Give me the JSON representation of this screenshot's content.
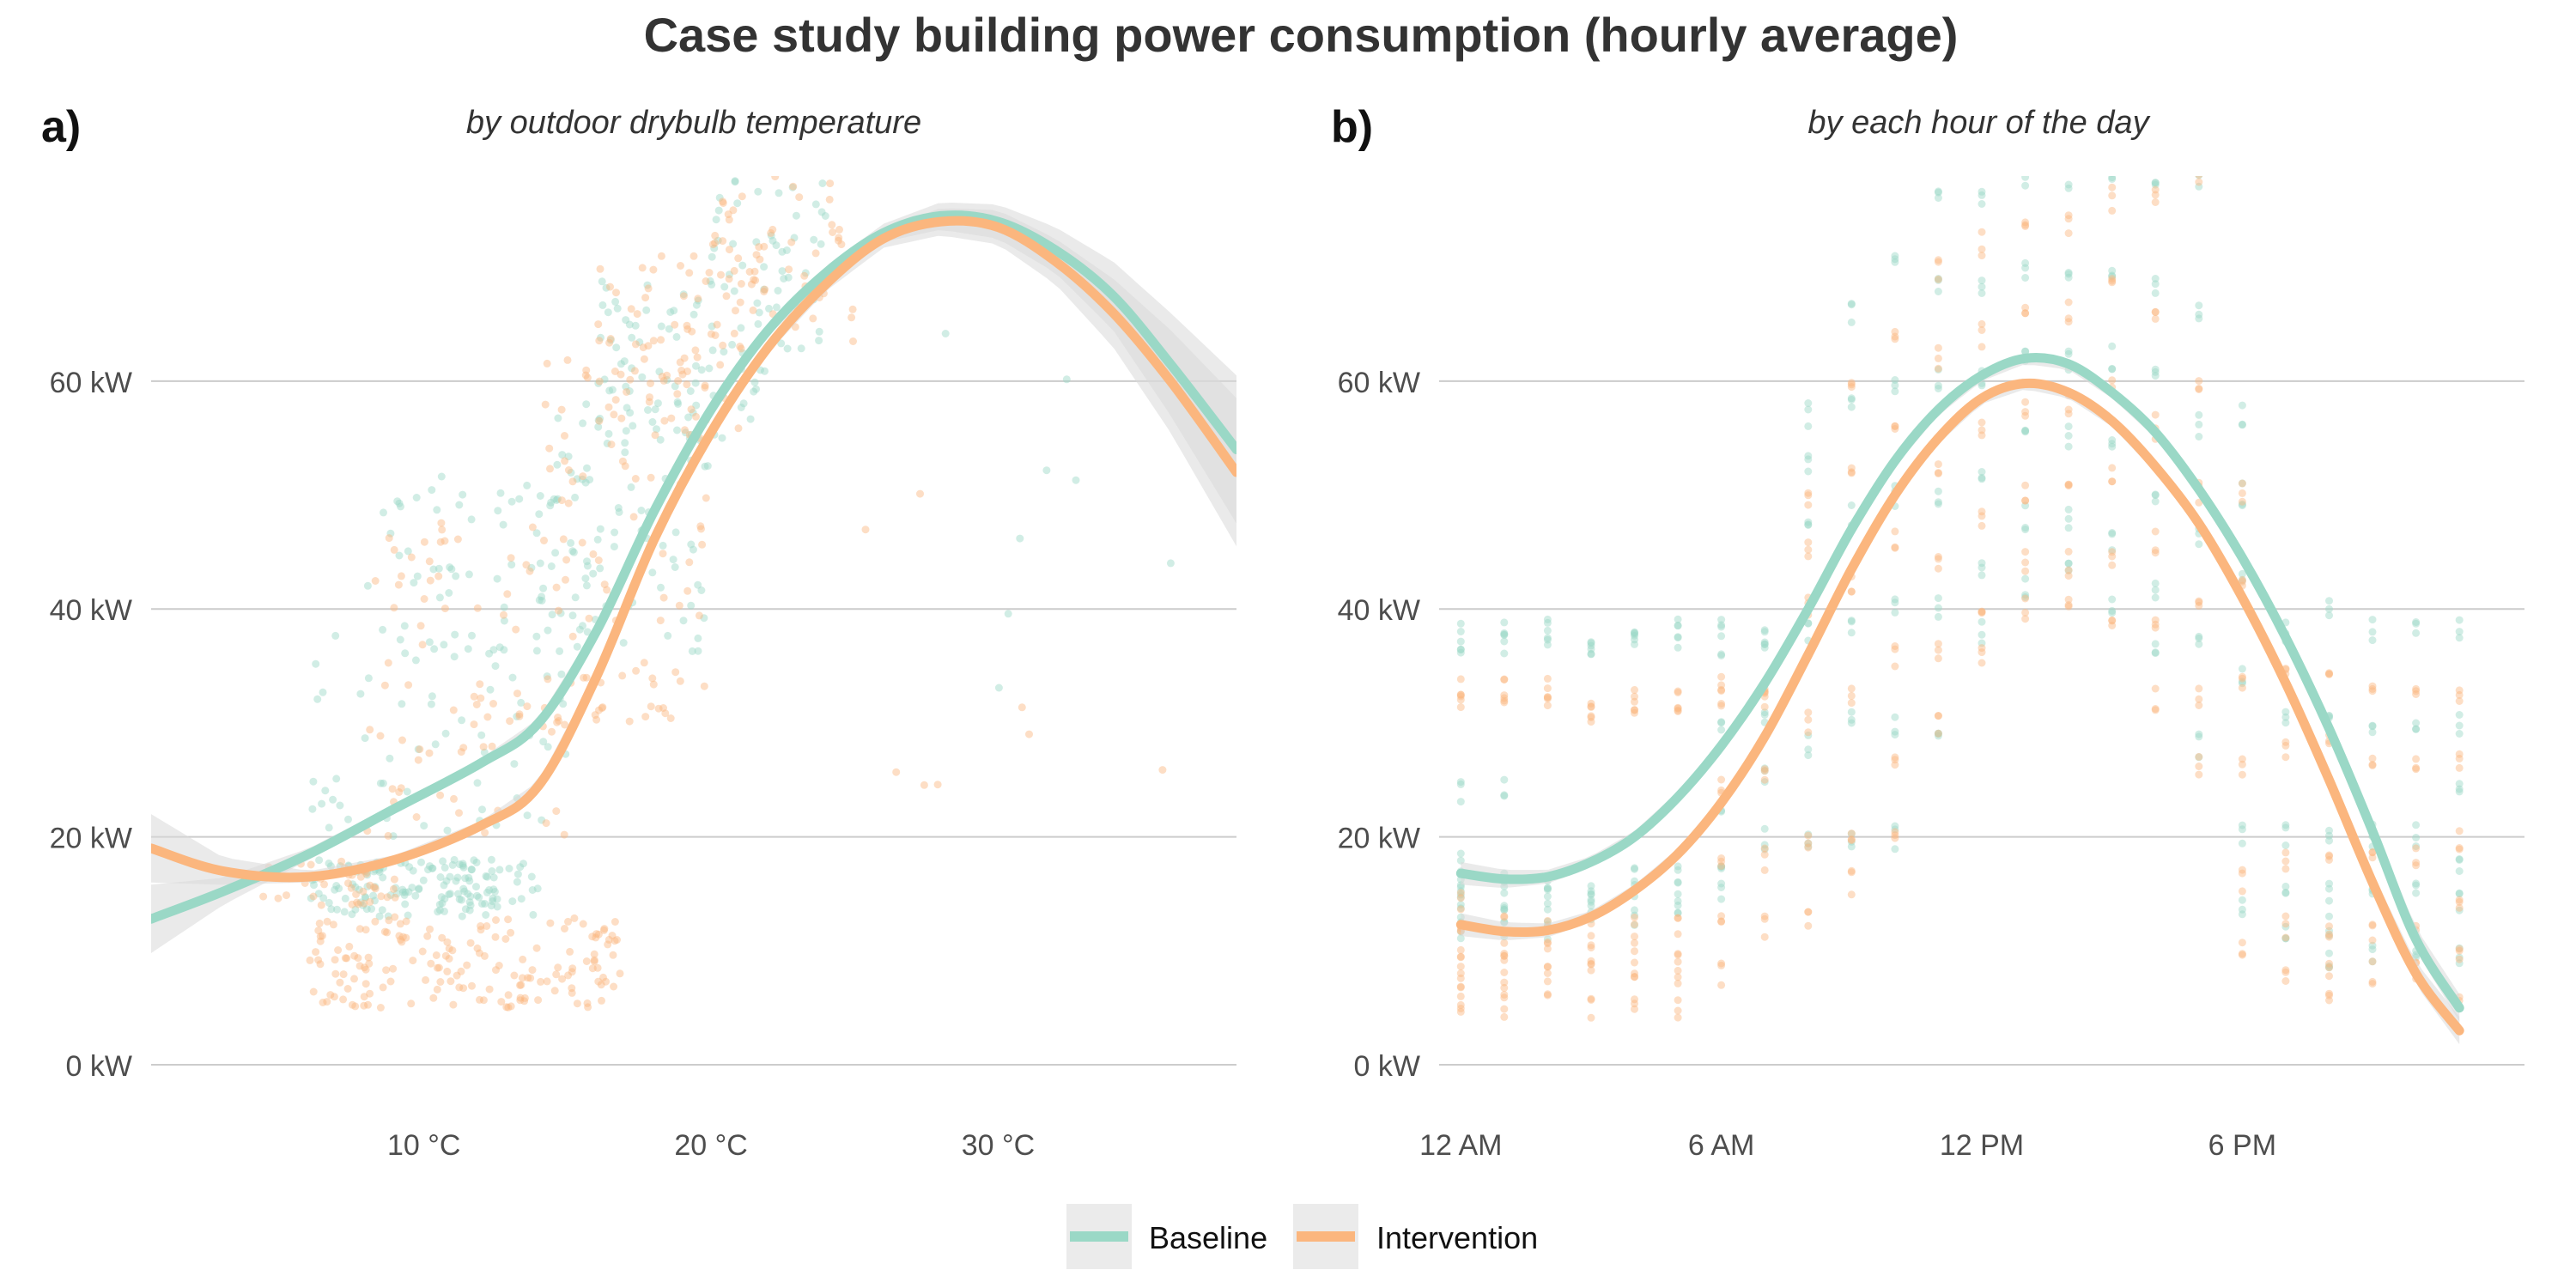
{
  "title": "Case study building power consumption (hourly average)",
  "colors": {
    "baseline": "#9ad8c6",
    "intervention": "#fbb67e",
    "band": "#d9d9d9",
    "grid": "#cccccc",
    "legend_key_bg": "#ebebeb"
  },
  "legend": {
    "position": "bottom-center",
    "items": [
      {
        "label": "Baseline",
        "color": "#9ad8c6"
      },
      {
        "label": "Intervention",
        "color": "#fbb67e"
      }
    ]
  },
  "chart_data": [
    {
      "panel": "a)",
      "subtitle": "by outdoor drybulb temperature",
      "type": "scatter",
      "x_unit": "°C",
      "y_unit": "kW",
      "xlim": [
        0.5,
        38.3
      ],
      "ylim": [
        0,
        78
      ],
      "x_ticks": [
        10,
        20,
        30
      ],
      "x_tick_labels": [
        "10 °C",
        "20 °C",
        "30 °C"
      ],
      "y_ticks": [
        0,
        20,
        40,
        60
      ],
      "y_tick_labels": [
        "0 kW",
        "20 kW",
        "40 kW",
        "60 kW"
      ],
      "grid": "horizontal",
      "series": [
        {
          "name": "Baseline",
          "color": "#9ad8c6",
          "smooth_x": [
            0.5,
            3,
            6,
            9,
            12,
            14,
            16,
            18,
            20,
            22,
            24,
            26,
            28,
            30,
            32,
            34,
            36,
            38.3
          ],
          "smooth_y": [
            12.8,
            15.2,
            18.5,
            22.5,
            26.5,
            30.0,
            38.0,
            48.5,
            57.5,
            64.5,
            69.5,
            73.0,
            74.5,
            74.0,
            71.5,
            67.5,
            61.5,
            54.0
          ],
          "band_halfwidth": [
            3.0,
            1.2,
            0.5,
            0.4,
            0.4,
            0.4,
            0.5,
            0.5,
            0.5,
            0.5,
            0.6,
            0.8,
            1.2,
            1.5,
            2.0,
            3.0,
            4.5,
            6.5
          ],
          "scatter_clusters": [
            {
              "x": [
                6,
                14
              ],
              "y": [
                13,
                18
              ],
              "n": 150
            },
            {
              "x": [
                6,
                15
              ],
              "y": [
                20,
                38
              ],
              "n": 60
            },
            {
              "x": [
                8,
                16
              ],
              "y": [
                36,
                52
              ],
              "n": 70
            },
            {
              "x": [
                14,
                20
              ],
              "y": [
                36,
                62
              ],
              "n": 90
            },
            {
              "x": [
                16,
                22
              ],
              "y": [
                55,
                70
              ],
              "n": 70
            },
            {
              "x": [
                20,
                24
              ],
              "y": [
                62,
                78
              ],
              "n": 50
            },
            {
              "x": [
                24,
                37
              ],
              "y": [
                30,
                70
              ],
              "n": 8
            }
          ]
        },
        {
          "name": "Intervention",
          "color": "#fbb67e",
          "smooth_x": [
            0.5,
            3,
            6,
            9,
            12,
            14,
            16,
            18,
            20,
            22,
            24,
            26,
            28,
            30,
            32,
            34,
            36,
            38.3
          ],
          "smooth_y": [
            19.0,
            17.0,
            16.5,
            18.0,
            21.0,
            24.5,
            34.0,
            46.0,
            55.5,
            63.0,
            68.5,
            72.5,
            74.0,
            73.5,
            70.5,
            66.0,
            60.0,
            52.0
          ],
          "band_halfwidth": [
            3.0,
            1.2,
            0.5,
            0.4,
            0.4,
            0.4,
            0.5,
            0.5,
            0.5,
            0.5,
            0.6,
            0.8,
            1.2,
            1.5,
            2.0,
            3.0,
            4.5,
            6.5
          ],
          "scatter_clusters": [
            {
              "x": [
                6,
                17
              ],
              "y": [
                5,
                13
              ],
              "n": 170
            },
            {
              "x": [
                4,
                9
              ],
              "y": [
                14,
                18
              ],
              "n": 40
            },
            {
              "x": [
                8,
                15
              ],
              "y": [
                20,
                50
              ],
              "n": 80
            },
            {
              "x": [
                14,
                20
              ],
              "y": [
                30,
                62
              ],
              "n": 90
            },
            {
              "x": [
                16,
                22
              ],
              "y": [
                55,
                72
              ],
              "n": 70
            },
            {
              "x": [
                20,
                25
              ],
              "y": [
                62,
                78
              ],
              "n": 50
            },
            {
              "x": [
                24,
                37
              ],
              "y": [
                20,
                70
              ],
              "n": 8
            }
          ]
        }
      ]
    },
    {
      "panel": "b)",
      "subtitle": "by each hour of the day",
      "type": "scatter",
      "x_unit": "hour",
      "y_unit": "kW",
      "xlim": [
        -0.5,
        24.5
      ],
      "ylim": [
        0,
        78
      ],
      "x_ticks": [
        0,
        6,
        12,
        18
      ],
      "x_tick_labels": [
        "12 AM",
        "6 AM",
        "12 PM",
        "6 PM"
      ],
      "y_ticks": [
        0,
        20,
        40,
        60
      ],
      "y_tick_labels": [
        "0 kW",
        "20 kW",
        "40 kW",
        "60 kW"
      ],
      "grid": "horizontal",
      "series": [
        {
          "name": "Baseline",
          "color": "#9ad8c6",
          "smooth_x": [
            0,
            1,
            2,
            3,
            4,
            5,
            6,
            7,
            8,
            9,
            10,
            11,
            12,
            13,
            14,
            15,
            16,
            17,
            18,
            19,
            20,
            21,
            22,
            23
          ],
          "smooth_y": [
            16.8,
            16.3,
            16.5,
            17.8,
            20.0,
            23.5,
            28.0,
            33.5,
            40.0,
            47.0,
            53.0,
            57.5,
            60.5,
            62.0,
            61.5,
            59.0,
            55.5,
            50.5,
            44.5,
            37.5,
            29.5,
            20.5,
            11.0,
            5.0
          ],
          "band_halfwidth": [
            1.0,
            0.8,
            0.6,
            0.5,
            0.5,
            0.5,
            0.5,
            0.5,
            0.5,
            0.5,
            0.5,
            0.5,
            0.5,
            0.5,
            0.5,
            0.5,
            0.5,
            0.5,
            0.5,
            0.5,
            0.6,
            0.8,
            1.0,
            1.2
          ],
          "hour_levels": [
            [
              38,
              37,
              24,
              18,
              16,
              15,
              13,
              12
            ],
            [
              38,
              37,
              24,
              16,
              15,
              13,
              12
            ],
            [
              38,
              37,
              16,
              15,
              13,
              12
            ],
            [
              37,
              36,
              16,
              15,
              13
            ],
            [
              38,
              37,
              17,
              15,
              13
            ],
            [
              38,
              37,
              17,
              15,
              13
            ],
            [
              38,
              37,
              30,
              22,
              18,
              15
            ],
            [
              38,
              37,
              31,
              25,
              20
            ],
            [
              57,
              53,
              48,
              38,
              28,
              20
            ],
            [
              66,
              58,
              48,
              38,
              30,
              20
            ],
            [
              70,
              60,
              50,
              40,
              30,
              20
            ],
            [
              76,
              68,
              60,
              50,
              40,
              29
            ],
            [
              76,
              68,
              60,
              52,
              44,
              38
            ],
            [
              78,
              70,
              62,
              55,
              48,
              42
            ],
            [
              78,
              70,
              62,
              55,
              48,
              43
            ],
            [
              78,
              70,
              62,
              54,
              46,
              40
            ],
            [
              77,
              68,
              60,
              50,
              42,
              36
            ],
            [
              78,
              66,
              56,
              46,
              38,
              28
            ],
            [
              57,
              50,
              42,
              34,
              20,
              14
            ],
            [
              38,
              30,
              20,
              15,
              12
            ],
            [
              40,
              30,
              20,
              15,
              12,
              9
            ],
            [
              38,
              30,
              20,
              15,
              10
            ],
            [
              38,
              30,
              20,
              15,
              10
            ],
            [
              38,
              30,
              24,
              17,
              14,
              10
            ]
          ]
        },
        {
          "name": "Intervention",
          "color": "#fbb67e",
          "smooth_x": [
            0,
            1,
            2,
            3,
            4,
            5,
            6,
            7,
            8,
            9,
            10,
            11,
            12,
            13,
            14,
            15,
            16,
            17,
            18,
            19,
            20,
            21,
            22,
            23
          ],
          "smooth_y": [
            12.3,
            11.7,
            11.8,
            13.0,
            15.3,
            18.5,
            23.0,
            28.8,
            36.0,
            43.5,
            50.0,
            55.0,
            58.5,
            59.8,
            59.0,
            56.5,
            52.5,
            47.5,
            41.0,
            33.5,
            25.0,
            16.0,
            8.0,
            3.0
          ],
          "band_halfwidth": [
            1.0,
            0.8,
            0.6,
            0.5,
            0.5,
            0.5,
            0.5,
            0.5,
            0.5,
            0.5,
            0.5,
            0.5,
            0.5,
            0.5,
            0.5,
            0.5,
            0.5,
            0.5,
            0.5,
            0.5,
            0.6,
            0.8,
            1.0,
            1.2
          ],
          "hour_levels": [
            [
              33,
              32,
              14,
              11,
              9,
              8,
              6,
              5
            ],
            [
              33,
              32,
              12,
              10,
              9,
              7,
              5
            ],
            [
              33,
              32,
              12,
              10,
              9,
              7
            ],
            [
              32,
              31,
              12,
              10,
              8,
              5
            ],
            [
              32,
              31,
              12,
              10,
              8,
              5
            ],
            [
              32,
              31,
              12,
              10,
              8,
              5
            ],
            [
              33,
              32,
              24,
              18,
              12,
              8
            ],
            [
              33,
              32,
              25,
              18,
              12
            ],
            [
              50,
              45,
              40,
              30,
              20,
              13
            ],
            [
              60,
              52,
              42,
              32,
              20,
              16
            ],
            [
              64,
              56,
              46,
              36,
              26,
              20
            ],
            [
              70,
              62,
              52,
              44,
              36,
              30
            ],
            [
              72,
              64,
              56,
              48,
              40,
              36
            ],
            [
              74,
              66,
              58,
              50,
              44,
              40
            ],
            [
              74,
              66,
              58,
              50,
              44,
              40
            ],
            [
              76,
              68,
              60,
              52,
              44,
              38
            ],
            [
              76,
              66,
              56,
              46,
              38,
              32
            ],
            [
              78,
              60,
              50,
              40,
              32,
              26
            ],
            [
              50,
              42,
              34,
              26,
              16,
              10
            ],
            [
              34,
              28,
              18,
              12,
              8
            ],
            [
              34,
              28,
              18,
              12,
              8,
              6
            ],
            [
              33,
              27,
              18,
              12,
              8
            ],
            [
              33,
              27,
              18,
              12,
              8
            ],
            [
              33,
              27,
              20,
              14,
              10,
              6
            ]
          ]
        }
      ]
    }
  ]
}
